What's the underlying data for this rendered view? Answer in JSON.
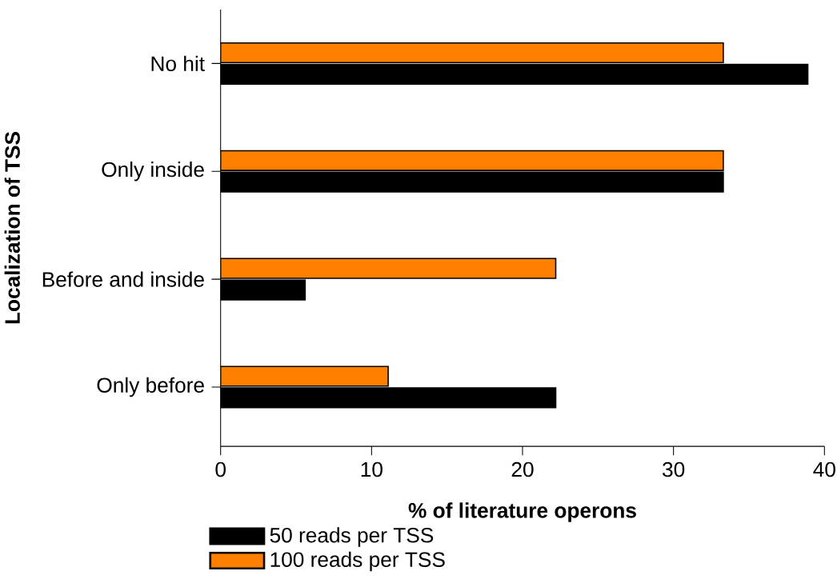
{
  "chart_data": {
    "type": "bar",
    "orientation": "horizontal",
    "xlabel": "% of literature operons",
    "ylabel": "Localization of TSS",
    "categories": [
      "No hit",
      "Only inside",
      "Before and inside",
      "Only before"
    ],
    "series": [
      {
        "name": "50 reads per TSS",
        "color": "#000000",
        "values": [
          38.9,
          33.3,
          5.6,
          22.2
        ]
      },
      {
        "name": "100 reads per TSS",
        "color": "#ff8000",
        "values": [
          33.3,
          33.3,
          22.2,
          11.1
        ]
      }
    ],
    "xlim": [
      0,
      40
    ],
    "xticks": [
      0,
      10,
      20,
      30,
      40
    ],
    "grid": false,
    "legend": "bottom left"
  }
}
